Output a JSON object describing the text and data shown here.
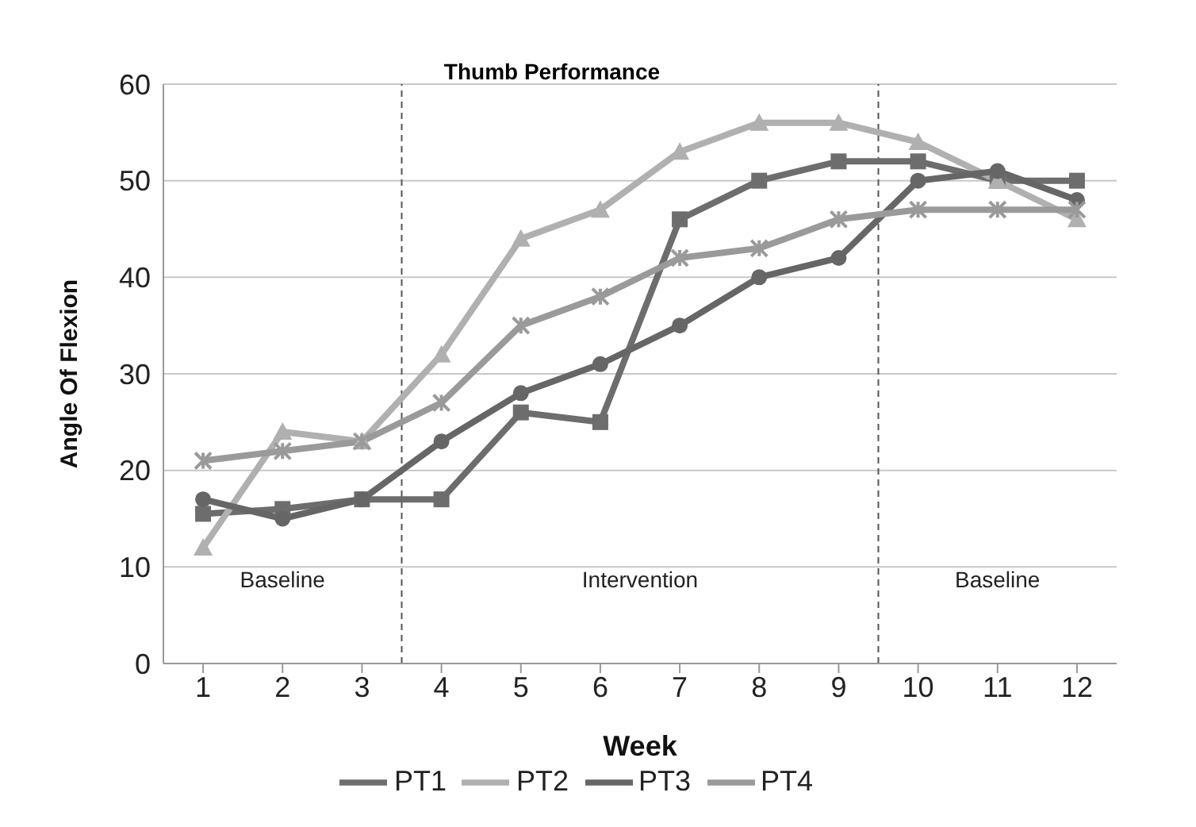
{
  "chart_data": {
    "type": "line",
    "title": "Thumb Performance",
    "xlabel": "Week",
    "ylabel": "Angle Of Flexion",
    "x": [
      1,
      2,
      3,
      4,
      5,
      6,
      7,
      8,
      9,
      10,
      11,
      12
    ],
    "xlim": [
      0.5,
      12.5
    ],
    "xticks": [
      1,
      2,
      3,
      4,
      5,
      6,
      7,
      8,
      9,
      10,
      11,
      12
    ],
    "ylim": [
      0,
      60
    ],
    "yticks": [
      0,
      10,
      20,
      30,
      40,
      50,
      60
    ],
    "grid": "y",
    "legend": "bottom",
    "series": [
      {
        "name": "PT1",
        "color": "#6d6d6d",
        "marker": "square",
        "values": [
          15.5,
          16,
          17,
          17,
          26,
          25,
          46,
          50,
          52,
          52,
          50,
          50
        ]
      },
      {
        "name": "PT2",
        "color": "#b0b0b0",
        "marker": "triangle",
        "values": [
          12,
          24,
          23,
          32,
          44,
          47,
          53,
          56,
          56,
          54,
          50,
          46
        ]
      },
      {
        "name": "PT3",
        "color": "#666666",
        "marker": "circle",
        "values": [
          17,
          15,
          17,
          23,
          28,
          31,
          35,
          40,
          42,
          50,
          51,
          48
        ]
      },
      {
        "name": "PT4",
        "color": "#9a9a9a",
        "marker": "cross",
        "values": [
          21,
          22,
          23,
          27,
          35,
          38,
          42,
          43,
          46,
          47,
          47,
          47
        ]
      }
    ],
    "ref_lines": [
      {
        "axis": "x",
        "value": 3.5,
        "color": "#555555",
        "line_style": "dashed"
      },
      {
        "axis": "x",
        "value": 9.5,
        "color": "#555555",
        "line_style": "dashed"
      }
    ],
    "annotations": [
      "Baseline",
      "Intervention",
      "Baseline"
    ]
  }
}
